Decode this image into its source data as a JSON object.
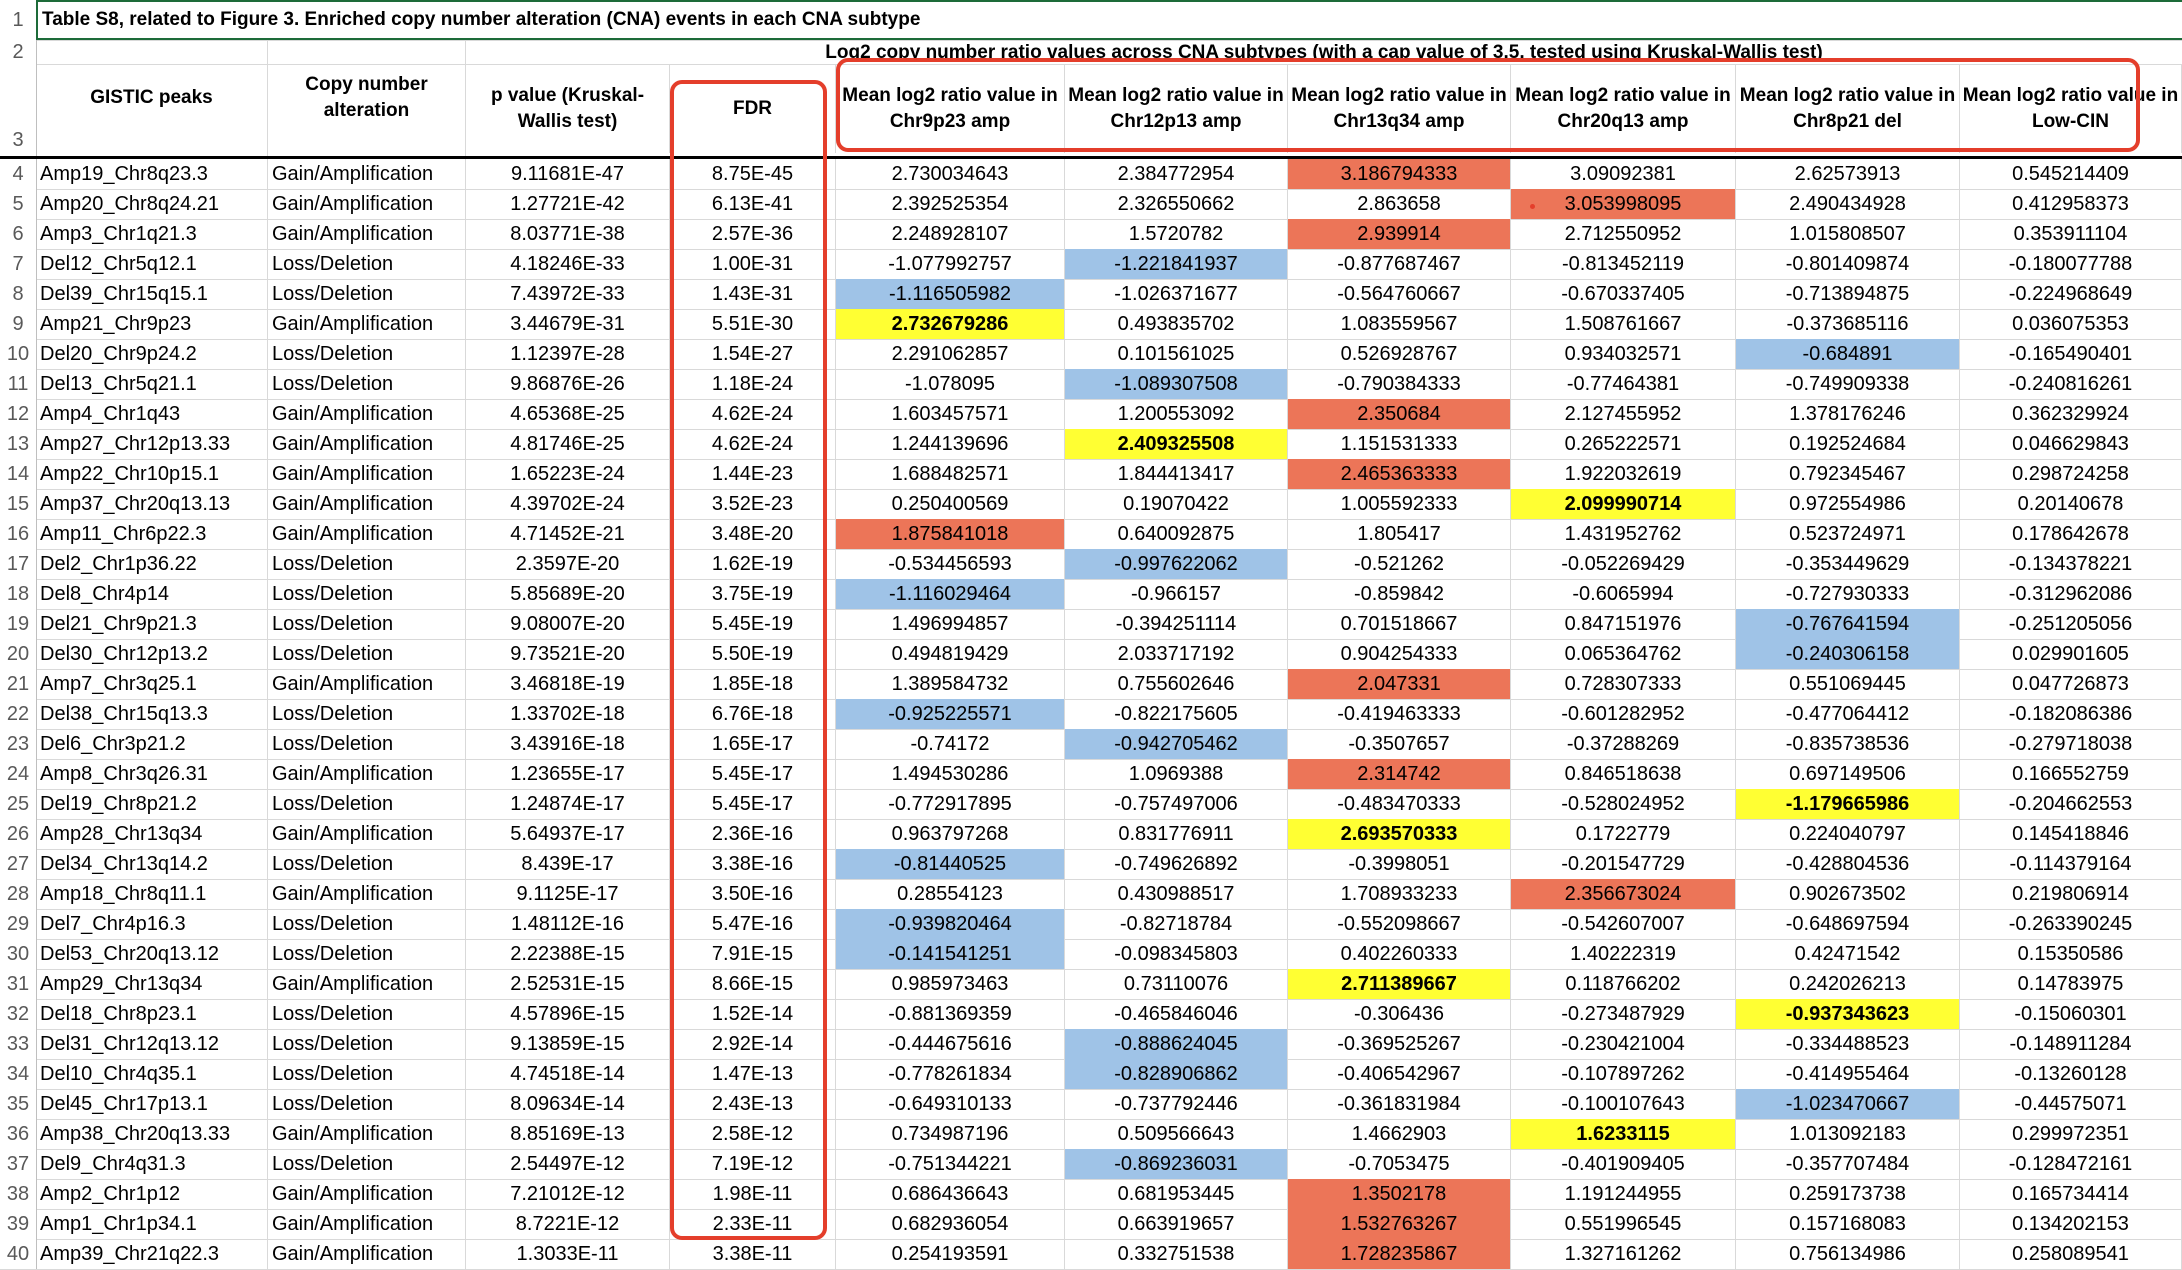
{
  "title": "Table S8, related to Figure 3. Enriched copy number alteration (CNA) events in each CNA subtype",
  "group_header": "Log2 copy number ratio values across CNA subtypes (with a cap value of 3.5, tested using Kruskal-Wallis test)",
  "headers": [
    "GISTIC peaks",
    "Copy number alteration",
    "p value (Kruskal-Wallis test)",
    "FDR",
    "Mean log2 ratio value in Chr9p23 amp",
    "Mean log2 ratio value in Chr12p13 amp",
    "Mean log2 ratio value in Chr13q34 amp",
    "Mean log2 ratio value in Chr20q13 amp",
    "Mean log2 ratio value in Chr8p21 del",
    "Mean log2 ratio value in Low-CIN"
  ],
  "highlight_colors": {
    "red": "#ec7558",
    "yellow": "#ffff33",
    "blue": "#9fc3e7",
    "annotation": "#e43e2b"
  },
  "rows": [
    {
      "num": "4",
      "cells": [
        "Amp19_Chr8q23.3",
        "Gain/Amplification",
        "9.11681E-47",
        "8.75E-45",
        "2.730034643",
        "2.384772954",
        "3.186794333",
        "3.09092381",
        "2.62573913",
        "0.545214409"
      ],
      "hl": {
        "6": "red"
      }
    },
    {
      "num": "5",
      "cells": [
        "Amp20_Chr8q24.21",
        "Gain/Amplification",
        "1.27721E-42",
        "6.13E-41",
        "2.392525354",
        "2.326550662",
        "2.863658",
        "3.053998095",
        "2.490434928",
        "0.412958373"
      ],
      "hl": {
        "7": "red"
      }
    },
    {
      "num": "6",
      "cells": [
        "Amp3_Chr1q21.3",
        "Gain/Amplification",
        "8.03771E-38",
        "2.57E-36",
        "2.248928107",
        "1.5720782",
        "2.939914",
        "2.712550952",
        "1.015808507",
        "0.353911104"
      ],
      "hl": {
        "6": "red"
      }
    },
    {
      "num": "7",
      "cells": [
        "Del12_Chr5q12.1",
        "Loss/Deletion",
        "4.18246E-33",
        "1.00E-31",
        "-1.077992757",
        "-1.221841937",
        "-0.877687467",
        "-0.813452119",
        "-0.801409874",
        "-0.180077788"
      ],
      "hl": {
        "5": "blue"
      }
    },
    {
      "num": "8",
      "cells": [
        "Del39_Chr15q15.1",
        "Loss/Deletion",
        "7.43972E-33",
        "1.43E-31",
        "-1.116505982",
        "-1.026371677",
        "-0.564760667",
        "-0.670337405",
        "-0.713894875",
        "-0.224968649"
      ],
      "hl": {
        "4": "blue"
      }
    },
    {
      "num": "9",
      "cells": [
        "Amp21_Chr9p23",
        "Gain/Amplification",
        "3.44679E-31",
        "5.51E-30",
        "2.732679286",
        "0.493835702",
        "1.083559567",
        "1.508761667",
        "-0.373685116",
        "0.036075353"
      ],
      "hl": {
        "4": "yellow"
      }
    },
    {
      "num": "10",
      "cells": [
        "Del20_Chr9p24.2",
        "Loss/Deletion",
        "1.12397E-28",
        "1.54E-27",
        "2.291062857",
        "0.101561025",
        "0.526928767",
        "0.934032571",
        "-0.684891",
        "-0.165490401"
      ],
      "hl": {
        "8": "blue"
      }
    },
    {
      "num": "11",
      "cells": [
        "Del13_Chr5q21.1",
        "Loss/Deletion",
        "9.86876E-26",
        "1.18E-24",
        "-1.078095",
        "-1.089307508",
        "-0.790384333",
        "-0.77464381",
        "-0.749909338",
        "-0.240816261"
      ],
      "hl": {
        "5": "blue"
      }
    },
    {
      "num": "12",
      "cells": [
        "Amp4_Chr1q43",
        "Gain/Amplification",
        "4.65368E-25",
        "4.62E-24",
        "1.603457571",
        "1.200553092",
        "2.350684",
        "2.127455952",
        "1.378176246",
        "0.362329924"
      ],
      "hl": {
        "6": "red"
      }
    },
    {
      "num": "13",
      "cells": [
        "Amp27_Chr12p13.33",
        "Gain/Amplification",
        "4.81746E-25",
        "4.62E-24",
        "1.244139696",
        "2.409325508",
        "1.151531333",
        "0.265222571",
        "0.192524684",
        "0.046629843"
      ],
      "hl": {
        "5": "yellow"
      }
    },
    {
      "num": "14",
      "cells": [
        "Amp22_Chr10p15.1",
        "Gain/Amplification",
        "1.65223E-24",
        "1.44E-23",
        "1.688482571",
        "1.844413417",
        "2.465363333",
        "1.922032619",
        "0.792345467",
        "0.298724258"
      ],
      "hl": {
        "6": "red"
      }
    },
    {
      "num": "15",
      "cells": [
        "Amp37_Chr20q13.13",
        "Gain/Amplification",
        "4.39702E-24",
        "3.52E-23",
        "0.250400569",
        "0.19070422",
        "1.005592333",
        "2.099990714",
        "0.972554986",
        "0.20140678"
      ],
      "hl": {
        "7": "yellow"
      }
    },
    {
      "num": "16",
      "cells": [
        "Amp11_Chr6p22.3",
        "Gain/Amplification",
        "4.71452E-21",
        "3.48E-20",
        "1.875841018",
        "0.640092875",
        "1.805417",
        "1.431952762",
        "0.523724971",
        "0.178642678"
      ],
      "hl": {
        "4": "red"
      }
    },
    {
      "num": "17",
      "cells": [
        "Del2_Chr1p36.22",
        "Loss/Deletion",
        "2.3597E-20",
        "1.62E-19",
        "-0.534456593",
        "-0.997622062",
        "-0.521262",
        "-0.052269429",
        "-0.353449629",
        "-0.134378221"
      ],
      "hl": {
        "5": "blue"
      }
    },
    {
      "num": "18",
      "cells": [
        "Del8_Chr4p14",
        "Loss/Deletion",
        "5.85689E-20",
        "3.75E-19",
        "-1.116029464",
        "-0.966157",
        "-0.859842",
        "-0.6065994",
        "-0.727930333",
        "-0.312962086"
      ],
      "hl": {
        "4": "blue"
      }
    },
    {
      "num": "19",
      "cells": [
        "Del21_Chr9p21.3",
        "Loss/Deletion",
        "9.08007E-20",
        "5.45E-19",
        "1.496994857",
        "-0.394251114",
        "0.701518667",
        "0.847151976",
        "-0.767641594",
        "-0.251205056"
      ],
      "hl": {
        "8": "blue"
      }
    },
    {
      "num": "20",
      "cells": [
        "Del30_Chr12p13.2",
        "Loss/Deletion",
        "9.73521E-20",
        "5.50E-19",
        "0.494819429",
        "2.033717192",
        "0.904254333",
        "0.065364762",
        "-0.240306158",
        "0.029901605"
      ],
      "hl": {
        "8": "blue"
      }
    },
    {
      "num": "21",
      "cells": [
        "Amp7_Chr3q25.1",
        "Gain/Amplification",
        "3.46818E-19",
        "1.85E-18",
        "1.389584732",
        "0.755602646",
        "2.047331",
        "0.728307333",
        "0.551069445",
        "0.047726873"
      ],
      "hl": {
        "6": "red"
      }
    },
    {
      "num": "22",
      "cells": [
        "Del38_Chr15q13.3",
        "Loss/Deletion",
        "1.33702E-18",
        "6.76E-18",
        "-0.925225571",
        "-0.822175605",
        "-0.419463333",
        "-0.601282952",
        "-0.477064412",
        "-0.182086386"
      ],
      "hl": {
        "4": "blue"
      }
    },
    {
      "num": "23",
      "cells": [
        "Del6_Chr3p21.2",
        "Loss/Deletion",
        "3.43916E-18",
        "1.65E-17",
        "-0.74172",
        "-0.942705462",
        "-0.3507657",
        "-0.37288269",
        "-0.835738536",
        "-0.279718038"
      ],
      "hl": {
        "5": "blue"
      }
    },
    {
      "num": "24",
      "cells": [
        "Amp8_Chr3q26.31",
        "Gain/Amplification",
        "1.23655E-17",
        "5.45E-17",
        "1.494530286",
        "1.0969388",
        "2.314742",
        "0.846518638",
        "0.697149506",
        "0.166552759"
      ],
      "hl": {
        "6": "red"
      }
    },
    {
      "num": "25",
      "cells": [
        "Del19_Chr8p21.2",
        "Loss/Deletion",
        "1.24874E-17",
        "5.45E-17",
        "-0.772917895",
        "-0.757497006",
        "-0.483470333",
        "-0.528024952",
        "-1.179665986",
        "-0.204662553"
      ],
      "hl": {
        "8": "yellow"
      }
    },
    {
      "num": "26",
      "cells": [
        "Amp28_Chr13q34",
        "Gain/Amplification",
        "5.64937E-17",
        "2.36E-16",
        "0.963797268",
        "0.831776911",
        "2.693570333",
        "0.1722779",
        "0.224040797",
        "0.145418846"
      ],
      "hl": {
        "6": "yellow"
      }
    },
    {
      "num": "27",
      "cells": [
        "Del34_Chr13q14.2",
        "Loss/Deletion",
        "8.439E-17",
        "3.38E-16",
        "-0.81440525",
        "-0.749626892",
        "-0.3998051",
        "-0.201547729",
        "-0.428804536",
        "-0.114379164"
      ],
      "hl": {
        "4": "blue"
      }
    },
    {
      "num": "28",
      "cells": [
        "Amp18_Chr8q11.1",
        "Gain/Amplification",
        "9.1125E-17",
        "3.50E-16",
        "0.28554123",
        "0.430988517",
        "1.708933233",
        "2.356673024",
        "0.902673502",
        "0.219806914"
      ],
      "hl": {
        "7": "red"
      }
    },
    {
      "num": "29",
      "cells": [
        "Del7_Chr4p16.3",
        "Loss/Deletion",
        "1.48112E-16",
        "5.47E-16",
        "-0.939820464",
        "-0.82718784",
        "-0.552098667",
        "-0.542607007",
        "-0.648697594",
        "-0.263390245"
      ],
      "hl": {
        "4": "blue"
      }
    },
    {
      "num": "30",
      "cells": [
        "Del53_Chr20q13.12",
        "Loss/Deletion",
        "2.22388E-15",
        "7.91E-15",
        "-0.141541251",
        "-0.098345803",
        "0.402260333",
        "1.40222319",
        "0.42471542",
        "0.15350586"
      ],
      "hl": {
        "4": "blue"
      }
    },
    {
      "num": "31",
      "cells": [
        "Amp29_Chr13q34",
        "Gain/Amplification",
        "2.52531E-15",
        "8.66E-15",
        "0.985973463",
        "0.73110076",
        "2.711389667",
        "0.118766202",
        "0.242026213",
        "0.14783975"
      ],
      "hl": {
        "6": "yellow"
      }
    },
    {
      "num": "32",
      "cells": [
        "Del18_Chr8p23.1",
        "Loss/Deletion",
        "4.57896E-15",
        "1.52E-14",
        "-0.881369359",
        "-0.465846046",
        "-0.306436",
        "-0.273487929",
        "-0.937343623",
        "-0.15060301"
      ],
      "hl": {
        "8": "yellow"
      }
    },
    {
      "num": "33",
      "cells": [
        "Del31_Chr12q13.12",
        "Loss/Deletion",
        "9.13859E-15",
        "2.92E-14",
        "-0.444675616",
        "-0.888624045",
        "-0.369525267",
        "-0.230421004",
        "-0.334488523",
        "-0.148911284"
      ],
      "hl": {
        "5": "blue"
      }
    },
    {
      "num": "34",
      "cells": [
        "Del10_Chr4q35.1",
        "Loss/Deletion",
        "4.74518E-14",
        "1.47E-13",
        "-0.778261834",
        "-0.828906862",
        "-0.406542967",
        "-0.107897262",
        "-0.414955464",
        "-0.13260128"
      ],
      "hl": {
        "5": "blue"
      }
    },
    {
      "num": "35",
      "cells": [
        "Del45_Chr17p13.1",
        "Loss/Deletion",
        "8.09634E-14",
        "2.43E-13",
        "-0.649310133",
        "-0.737792446",
        "-0.361831984",
        "-0.100107643",
        "-1.023470667",
        "-0.44575071"
      ],
      "hl": {
        "8": "blue"
      }
    },
    {
      "num": "36",
      "cells": [
        "Amp38_Chr20q13.33",
        "Gain/Amplification",
        "8.85169E-13",
        "2.58E-12",
        "0.734987196",
        "0.509566643",
        "1.4662903",
        "1.6233115",
        "1.013092183",
        "0.299972351"
      ],
      "hl": {
        "7": "yellow"
      }
    },
    {
      "num": "37",
      "cells": [
        "Del9_Chr4q31.3",
        "Loss/Deletion",
        "2.54497E-12",
        "7.19E-12",
        "-0.751344221",
        "-0.869236031",
        "-0.7053475",
        "-0.401909405",
        "-0.357707484",
        "-0.128472161"
      ],
      "hl": {
        "5": "blue"
      }
    },
    {
      "num": "38",
      "cells": [
        "Amp2_Chr1p12",
        "Gain/Amplification",
        "7.21012E-12",
        "1.98E-11",
        "0.686436643",
        "0.681953445",
        "1.3502178",
        "1.191244955",
        "0.259173738",
        "0.165734414"
      ],
      "hl": {
        "6": "red"
      }
    },
    {
      "num": "39",
      "cells": [
        "Amp1_Chr1p34.1",
        "Gain/Amplification",
        "8.7221E-12",
        "2.33E-11",
        "0.682936054",
        "0.663919657",
        "1.532763267",
        "0.551996545",
        "0.157168083",
        "0.134202153"
      ],
      "hl": {
        "6": "red"
      }
    },
    {
      "num": "40",
      "cells": [
        "Amp39_Chr21q22.3",
        "Gain/Amplification",
        "1.3033E-11",
        "3.38E-11",
        "0.254193591",
        "0.332751538",
        "1.728235867",
        "1.327161262",
        "0.756134986",
        "0.258089541"
      ],
      "hl": {
        "6": "red"
      }
    }
  ]
}
